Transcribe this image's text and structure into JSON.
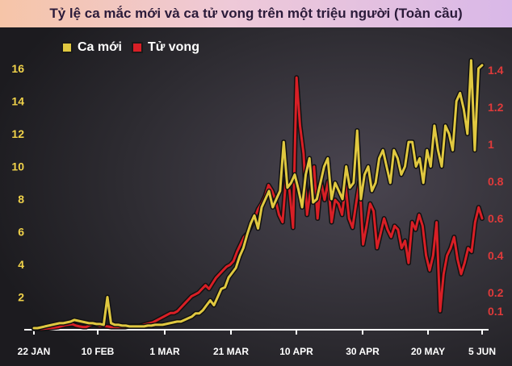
{
  "chart_data": {
    "type": "line",
    "title": "Tỷ lệ ca mắc mới và ca tử vong trên một triệu người (Toàn cầu)",
    "x_tick_labels": [
      "22 JAN",
      "10 FEB",
      "1 MAR",
      "21 MAR",
      "10 APR",
      "30 APR",
      "20 MAY",
      "5 JUN"
    ],
    "y_left": {
      "ticks": [
        2,
        4,
        6,
        8,
        10,
        12,
        14,
        16
      ],
      "range": [
        0,
        17
      ]
    },
    "y_right": {
      "ticks": [
        0.1,
        0.2,
        0.4,
        0.6,
        0.8,
        1,
        1.2,
        1.4
      ],
      "range": [
        0,
        1.5
      ]
    },
    "series": [
      {
        "name": "Ca mới",
        "axis": "left",
        "color": "#e0c840",
        "values": [
          0.1,
          0.1,
          0.15,
          0.2,
          0.25,
          0.3,
          0.35,
          0.4,
          0.4,
          0.45,
          0.5,
          0.6,
          0.55,
          0.5,
          0.45,
          0.4,
          0.4,
          0.35,
          0.35,
          0.3,
          2.0,
          0.4,
          0.3,
          0.3,
          0.25,
          0.25,
          0.2,
          0.2,
          0.2,
          0.2,
          0.2,
          0.25,
          0.25,
          0.3,
          0.3,
          0.3,
          0.35,
          0.4,
          0.45,
          0.5,
          0.5,
          0.6,
          0.7,
          0.8,
          1.0,
          1.0,
          1.2,
          1.5,
          1.8,
          1.5,
          2.0,
          2.5,
          2.6,
          3.2,
          3.5,
          3.8,
          4.5,
          5.0,
          5.8,
          6.5,
          7.0,
          6.2,
          7.5,
          8.0,
          8.5,
          7.5,
          8.0,
          8.5,
          11.5,
          8.7,
          9.0,
          9.5,
          8.6,
          7.5,
          9.5,
          10.5,
          7.8,
          8.0,
          9.0,
          10.0,
          10.5,
          8.0,
          9.0,
          8.5,
          8.0,
          10.0,
          8.7,
          9.0,
          12.2,
          8.0,
          9.5,
          10.0,
          8.5,
          9.0,
          10.5,
          11.0,
          10.0,
          9.0,
          11.0,
          10.5,
          9.5,
          10.0,
          11.5,
          11.5,
          10.0,
          10.5,
          9.0,
          11.0,
          10.0,
          12.5,
          11.0,
          10.0,
          12.5,
          12.0,
          11.0,
          14.0,
          14.5,
          13.5,
          12.0,
          16.5,
          11.0,
          16.0,
          16.2
        ]
      },
      {
        "name": "Tử vong",
        "axis": "right",
        "color": "#d81f26",
        "values": [
          0.005,
          0.005,
          0.005,
          0.006,
          0.008,
          0.01,
          0.012,
          0.015,
          0.02,
          0.025,
          0.028,
          0.03,
          0.022,
          0.018,
          0.015,
          0.015,
          0.025,
          0.03,
          0.025,
          0.02,
          0.02,
          0.018,
          0.015,
          0.015,
          0.015,
          0.015,
          0.015,
          0.018,
          0.02,
          0.02,
          0.02,
          0.025,
          0.03,
          0.035,
          0.04,
          0.05,
          0.06,
          0.07,
          0.08,
          0.09,
          0.09,
          0.1,
          0.12,
          0.14,
          0.16,
          0.18,
          0.19,
          0.2,
          0.22,
          0.24,
          0.22,
          0.25,
          0.28,
          0.3,
          0.32,
          0.34,
          0.35,
          0.37,
          0.42,
          0.46,
          0.5,
          0.52,
          0.56,
          0.6,
          0.65,
          0.68,
          0.72,
          0.78,
          0.75,
          0.7,
          0.62,
          0.58,
          0.82,
          0.75,
          0.55,
          1.36,
          1.1,
          0.95,
          0.62,
          0.75,
          0.88,
          0.6,
          0.8,
          0.7,
          0.8,
          0.58,
          0.7,
          0.68,
          0.62,
          0.78,
          0.6,
          0.55,
          0.68,
          0.8,
          0.46,
          0.56,
          0.68,
          0.64,
          0.44,
          0.52,
          0.6,
          0.54,
          0.5,
          0.56,
          0.54,
          0.44,
          0.48,
          0.36,
          0.58,
          0.54,
          0.62,
          0.56,
          0.4,
          0.32,
          0.4,
          0.58,
          0.1,
          0.3,
          0.4,
          0.44,
          0.5,
          0.38,
          0.3,
          0.36,
          0.44,
          0.42,
          0.58,
          0.66,
          0.6
        ]
      }
    ],
    "grid": false,
    "legend": "top-left"
  }
}
